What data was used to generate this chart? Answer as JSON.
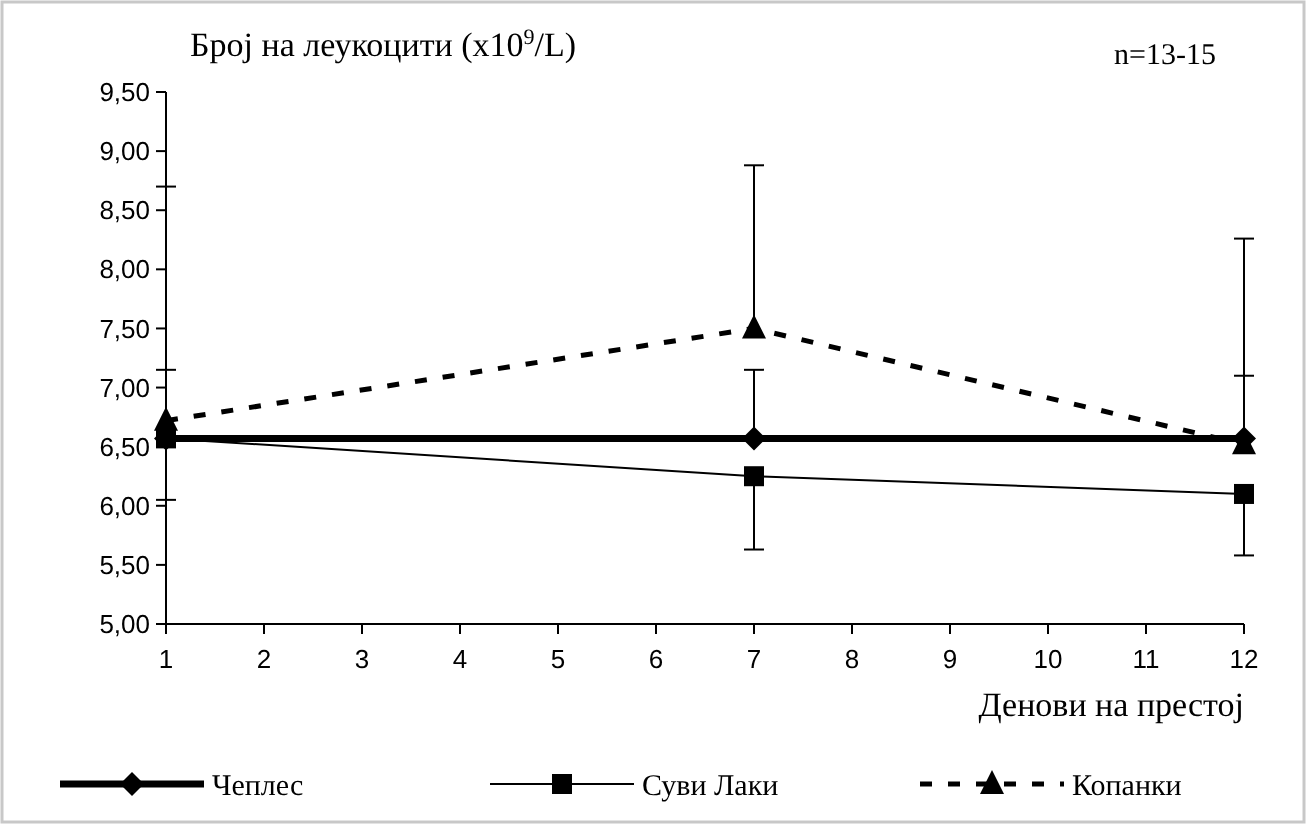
{
  "chart_data": {
    "type": "line",
    "title": "Број на леукоцити (x10$^{9}$/L)",
    "xlabel": "Денови на престој",
    "annotations": [
      "n=13-15"
    ],
    "xlim": [
      1,
      12
    ],
    "xticks": [
      1,
      2,
      3,
      4,
      5,
      6,
      7,
      8,
      9,
      10,
      11,
      12
    ],
    "ylim": [
      5,
      9.5
    ],
    "yticks": [
      {
        "value": 5,
        "label": "5,00"
      },
      {
        "value": 5.5,
        "label": "5,50"
      },
      {
        "value": 6,
        "label": "6,00"
      },
      {
        "value": 6.5,
        "label": "6,50"
      },
      {
        "value": 7,
        "label": "7,00"
      },
      {
        "value": 7.5,
        "label": "7,50"
      },
      {
        "value": 8,
        "label": "8,00"
      },
      {
        "value": 8.5,
        "label": "8,50"
      },
      {
        "value": 9,
        "label": "9,00"
      },
      {
        "value": 9.5,
        "label": "9,50"
      }
    ],
    "grid": false,
    "legend": "bottom",
    "x": [
      1,
      7,
      12
    ],
    "series": [
      {
        "name": "Чеплес",
        "color": "#000000",
        "values": [
          6.57,
          6.57,
          6.57
        ],
        "marker": "diamond",
        "line_style": "solid",
        "errors": [
          [
            6.57,
            7.15
          ],
          [
            6.57,
            7.15
          ],
          [
            6.57,
            7.1
          ]
        ]
      },
      {
        "name": "Суви Лаки",
        "color": "#000000",
        "values": [
          6.57,
          6.25,
          6.1
        ],
        "marker": "square",
        "line_style": "solid",
        "errors": [
          [
            6.05,
            6.57
          ],
          [
            5.63,
            6.25
          ],
          [
            5.58,
            6.1
          ]
        ]
      },
      {
        "name": "Копанки",
        "color": "#000000",
        "values": [
          6.72,
          7.5,
          6.52
        ],
        "marker": "triangle",
        "line_style": "dashed",
        "errors": [
          [
            6.72,
            8.7
          ],
          [
            7.5,
            8.88
          ],
          [
            6.52,
            8.26
          ]
        ]
      }
    ]
  }
}
